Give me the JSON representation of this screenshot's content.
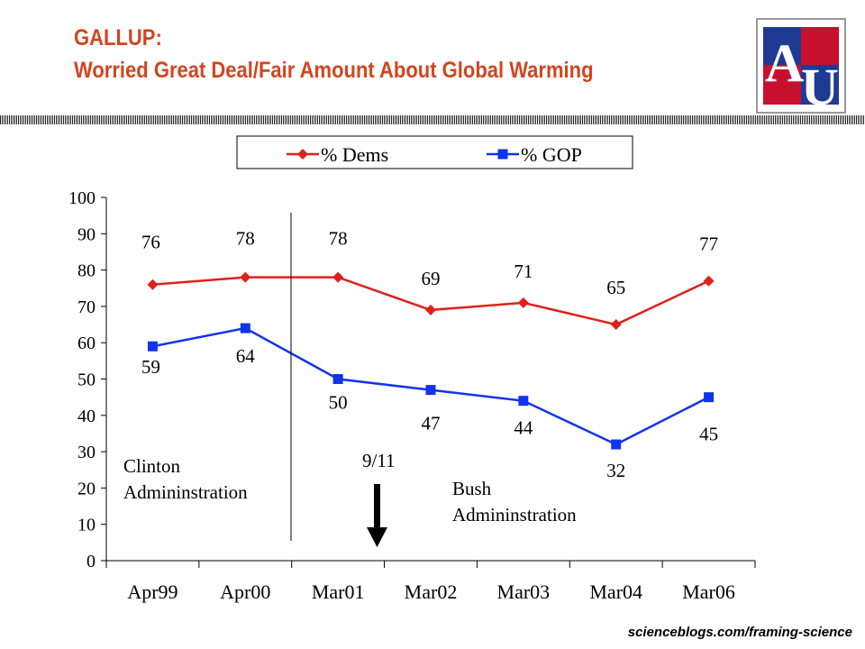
{
  "header": {
    "title_line1": "GALLUP:",
    "title_line2": "Worried Great Deal/Fair Amount About Global Warming",
    "logo_letters": "AU"
  },
  "footer": {
    "source": "scienceblogs.com/framing-science"
  },
  "colors": {
    "title": "#d2451e",
    "dems": "#e0201b",
    "gop": "#1133ee",
    "logo_blue": "#1f3a93",
    "logo_red": "#c8102e"
  },
  "chart_data": {
    "type": "line",
    "categories": [
      "Apr99",
      "Apr00",
      "Mar01",
      "Mar02",
      "Mar03",
      "Mar04",
      "Mar06"
    ],
    "series": [
      {
        "name": "% Dems",
        "values": [
          76,
          78,
          78,
          69,
          71,
          65,
          77
        ],
        "marker": "diamond",
        "color": "#e0201b"
      },
      {
        "name": "% GOP",
        "values": [
          59,
          64,
          50,
          47,
          44,
          32,
          45
        ],
        "marker": "square",
        "color": "#1133ee"
      }
    ],
    "ylim": [
      0,
      100
    ],
    "yticks": [
      0,
      10,
      20,
      30,
      40,
      50,
      60,
      70,
      80,
      90,
      100
    ],
    "legend": "top",
    "grid": false,
    "annotations": [
      {
        "text_lines": [
          "Clinton",
          "Admininstration"
        ],
        "id": "clinton"
      },
      {
        "text_lines": [
          "Bush",
          "Admininstration"
        ],
        "id": "bush"
      },
      {
        "text": "9/11",
        "id": "nine-eleven"
      }
    ]
  }
}
